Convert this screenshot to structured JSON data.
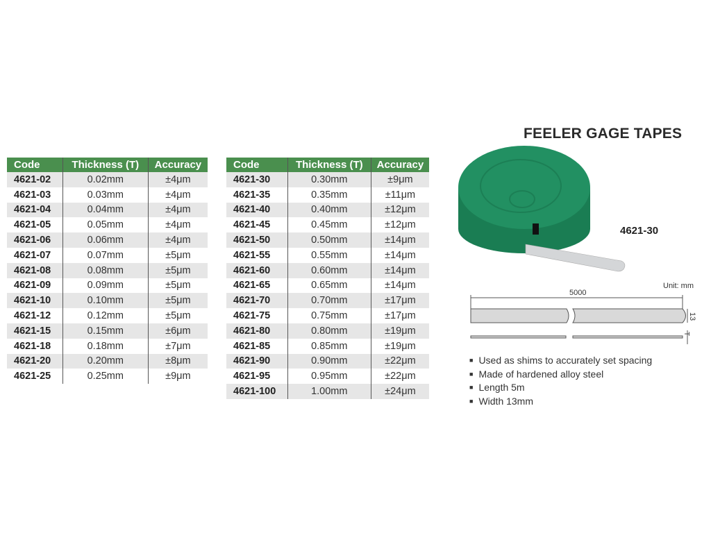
{
  "title": "FEELER GAGE TAPES",
  "table_headers": [
    "Code",
    "Thickness (T)",
    "Accuracy"
  ],
  "table_left": [
    [
      "4621-02",
      "0.02mm",
      "±4μm"
    ],
    [
      "4621-03",
      "0.03mm",
      "±4μm"
    ],
    [
      "4621-04",
      "0.04mm",
      "±4μm"
    ],
    [
      "4621-05",
      "0.05mm",
      "±4μm"
    ],
    [
      "4621-06",
      "0.06mm",
      "±4μm"
    ],
    [
      "4621-07",
      "0.07mm",
      "±5μm"
    ],
    [
      "4621-08",
      "0.08mm",
      "±5μm"
    ],
    [
      "4621-09",
      "0.09mm",
      "±5μm"
    ],
    [
      "4621-10",
      "0.10mm",
      "±5μm"
    ],
    [
      "4621-12",
      "0.12mm",
      "±5μm"
    ],
    [
      "4621-15",
      "0.15mm",
      "±6μm"
    ],
    [
      "4621-18",
      "0.18mm",
      "±7μm"
    ],
    [
      "4621-20",
      "0.20mm",
      "±8μm"
    ],
    [
      "4621-25",
      "0.25mm",
      "±9μm"
    ]
  ],
  "table_right": [
    [
      "4621-30",
      "0.30mm",
      "±9μm"
    ],
    [
      "4621-35",
      "0.35mm",
      "±11μm"
    ],
    [
      "4621-40",
      "0.40mm",
      "±12μm"
    ],
    [
      "4621-45",
      "0.45mm",
      "±12μm"
    ],
    [
      "4621-50",
      "0.50mm",
      "±14μm"
    ],
    [
      "4621-55",
      "0.55mm",
      "±14μm"
    ],
    [
      "4621-60",
      "0.60mm",
      "±14μm"
    ],
    [
      "4621-65",
      "0.65mm",
      "±14μm"
    ],
    [
      "4621-70",
      "0.70mm",
      "±17μm"
    ],
    [
      "4621-75",
      "0.75mm",
      "±17μm"
    ],
    [
      "4621-80",
      "0.80mm",
      "±19μm"
    ],
    [
      "4621-85",
      "0.85mm",
      "±19μm"
    ],
    [
      "4621-90",
      "0.90mm",
      "±22μm"
    ],
    [
      "4621-95",
      "0.95mm",
      "±22μm"
    ],
    [
      "4621-100",
      "1.00mm",
      "±24μm"
    ]
  ],
  "product_model": "4621-30",
  "diagram": {
    "unit": "Unit: mm",
    "length": "5000",
    "width": "13",
    "thickness": "T"
  },
  "features": [
    "Used as shims to accurately set spacing",
    "Made of hardened alloy steel",
    "Length 5m",
    "Width 13mm"
  ],
  "colors": {
    "header_green": "#4a8f4e",
    "reel_green": "#1e8a5c"
  }
}
